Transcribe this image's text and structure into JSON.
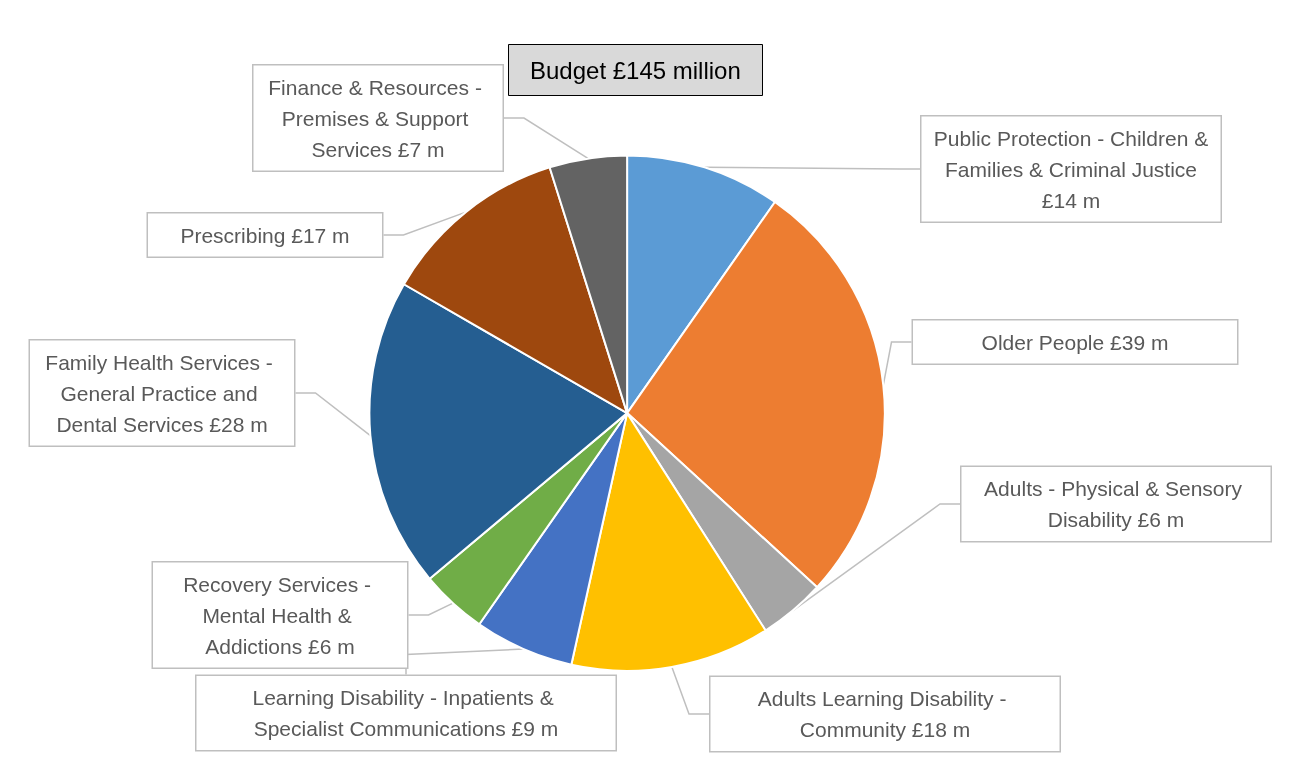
{
  "chart_data": {
    "type": "pie",
    "title": "Budget £145 million",
    "categories": [
      "Public Protection - Children & Families & Criminal Justice",
      "Older People",
      "Adults - Physical & Sensory Disability",
      "Adults Learning Disability - Community",
      "Learning Disability - Inpatients & Specialist Communications",
      "Recovery Services - Mental Health & Addictions",
      "Family Health Services - General Practice and Dental Services",
      "Prescribing",
      "Finance & Resources - Premises & Support Services"
    ],
    "values": [
      14,
      39,
      6,
      18,
      9,
      6,
      28,
      17,
      7
    ],
    "value_labels": [
      "£14 m",
      "£39 m",
      "£6 m",
      "£18 m",
      "£9 m",
      "£6 m",
      "£28 m",
      "£17 m",
      "£7 m"
    ],
    "colors": [
      "#5b9bd5",
      "#ed7d31",
      "#a5a5a5",
      "#ffc000",
      "#4472c4",
      "#70ad47",
      "#255e91",
      "#9e480e",
      "#636363"
    ],
    "legend": false
  }
}
